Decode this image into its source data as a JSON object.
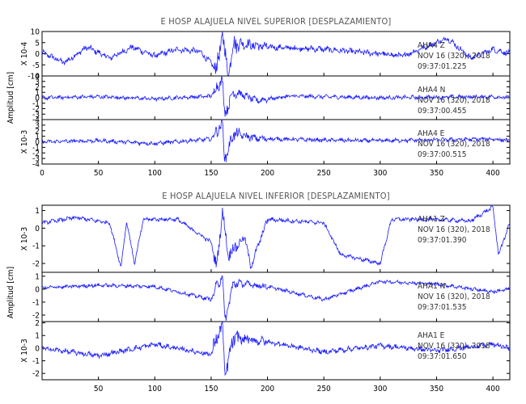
{
  "chart_data": [
    {
      "type": "line",
      "title": "E HOSP ALAJUELA NIVEL SUPERIOR [DESPLAZAMIENTO]",
      "ylabel": "Amplitud [cm]",
      "xlim": [
        0,
        415
      ],
      "x_ticks": [
        "0",
        "50",
        "100",
        "150",
        "200",
        "250",
        "300",
        "350",
        "400"
      ],
      "series": [
        {
          "name": "AHA4 Z",
          "scale_label": "X 10-4",
          "ylim": [
            -10,
            10
          ],
          "y_ticks": [
            -10,
            -5,
            0,
            5,
            10
          ],
          "y_tick_labels": [
            "-10",
            "-5",
            "0",
            "5",
            "10"
          ],
          "annotation": [
            "AHA4 Z",
            "NOV 16 (320), 2018",
            "09:37:01.225"
          ],
          "points": [
            [
              0,
              0.5
            ],
            [
              20,
              -4
            ],
            [
              40,
              3
            ],
            [
              60,
              -2
            ],
            [
              80,
              3
            ],
            [
              100,
              -1
            ],
            [
              120,
              2
            ],
            [
              140,
              1
            ],
            [
              155,
              -7
            ],
            [
              160,
              9
            ],
            [
              165,
              -10
            ],
            [
              170,
              5
            ],
            [
              200,
              3
            ],
            [
              250,
              2
            ],
            [
              300,
              0
            ],
            [
              320,
              -1
            ],
            [
              340,
              3
            ],
            [
              360,
              7
            ],
            [
              380,
              -2
            ],
            [
              400,
              2
            ],
            [
              415,
              0
            ]
          ],
          "burst": 0.9
        },
        {
          "name": "AHA4 N",
          "scale_label": "",
          "ylim": [
            -4,
            4
          ],
          "y_ticks": [
            -4,
            -3,
            -2,
            -1,
            0,
            1,
            2,
            3,
            4
          ],
          "y_tick_labels": [
            "-4",
            "-3",
            "-2",
            "-1",
            "0",
            "1",
            "2",
            "3",
            "4"
          ],
          "annotation": [
            "AHA4 N",
            "NOV 16 (320), 2018",
            "09:37:00.455"
          ],
          "points": [
            [
              0,
              0
            ],
            [
              50,
              0.2
            ],
            [
              100,
              -0.2
            ],
            [
              150,
              0.3
            ],
            [
              160,
              3.5
            ],
            [
              162,
              -3
            ],
            [
              170,
              1.2
            ],
            [
              190,
              -0.5
            ],
            [
              220,
              0.3
            ],
            [
              300,
              0
            ],
            [
              400,
              0.2
            ],
            [
              415,
              0
            ]
          ],
          "burst": 0.6
        },
        {
          "name": "AHA4 E",
          "scale_label": "X 10-3",
          "ylim": [
            -4,
            4
          ],
          "y_ticks": [
            -4,
            -3,
            -2,
            -1,
            0,
            1,
            2,
            3,
            4
          ],
          "y_tick_labels": [
            "-4",
            "-3",
            "-2",
            "-1",
            "0",
            "1",
            "2",
            "3",
            "4"
          ],
          "annotation": [
            "AHA4 E",
            "NOV 16 (320), 2018",
            "09:37:00.515"
          ],
          "points": [
            [
              0,
              0
            ],
            [
              50,
              0.2
            ],
            [
              100,
              -0.3
            ],
            [
              150,
              0.5
            ],
            [
              160,
              3.4
            ],
            [
              162,
              -3.2
            ],
            [
              170,
              1.5
            ],
            [
              190,
              0.6
            ],
            [
              250,
              0.3
            ],
            [
              300,
              0.2
            ],
            [
              400,
              0.5
            ],
            [
              415,
              0.2
            ]
          ],
          "burst": 0.6
        }
      ]
    },
    {
      "type": "line",
      "title": "E HOSP ALAJUELA NIVEL INFERIOR [DESPLAZAMIENTO]",
      "ylabel": "Amplitud [cm]",
      "xlim": [
        0,
        415
      ],
      "x_ticks": [
        "50",
        "100",
        "150",
        "200",
        "250",
        "300",
        "350",
        "400"
      ],
      "series": [
        {
          "name": "AHA1 Z",
          "scale_label": "X 10-3",
          "ylim": [
            -2.5,
            1.3
          ],
          "y_ticks": [
            -2,
            -1,
            0,
            1
          ],
          "y_tick_labels": [
            "-2",
            "-1",
            "0",
            "1"
          ],
          "annotation": [
            "AHA1 Z",
            "NOV 16 (320), 2018",
            "09:37:01.390"
          ],
          "points": [
            [
              0,
              0.3
            ],
            [
              30,
              0.6
            ],
            [
              60,
              0.3
            ],
            [
              70,
              -2.2
            ],
            [
              75,
              0.4
            ],
            [
              82,
              -2.0
            ],
            [
              90,
              0.5
            ],
            [
              120,
              0.5
            ],
            [
              150,
              -0.8
            ],
            [
              155,
              -2.2
            ],
            [
              160,
              1.0
            ],
            [
              165,
              -1.5
            ],
            [
              180,
              -0.5
            ],
            [
              185,
              -2.2
            ],
            [
              200,
              0.5
            ],
            [
              250,
              0.3
            ],
            [
              265,
              -1.5
            ],
            [
              300,
              -2.0
            ],
            [
              310,
              0.5
            ],
            [
              350,
              0.5
            ],
            [
              380,
              0.4
            ],
            [
              400,
              1.2
            ],
            [
              405,
              -1.5
            ],
            [
              415,
              0.3
            ]
          ],
          "burst": 0.4
        },
        {
          "name": "AHA1 N",
          "scale_label": "",
          "ylim": [
            -2.5,
            1.3
          ],
          "y_ticks": [
            -2,
            -1,
            0,
            1
          ],
          "y_tick_labels": [
            "-2",
            "-1",
            "0",
            "1"
          ],
          "annotation": [
            "AHA1 N",
            "NOV 16 (320), 2018",
            "09:37:01.535"
          ],
          "points": [
            [
              0,
              0.1
            ],
            [
              50,
              0.3
            ],
            [
              100,
              0.2
            ],
            [
              150,
              -0.8
            ],
            [
              160,
              1.2
            ],
            [
              162,
              -2.5
            ],
            [
              170,
              0.5
            ],
            [
              200,
              0.2
            ],
            [
              250,
              -0.8
            ],
            [
              300,
              0.6
            ],
            [
              350,
              0.4
            ],
            [
              400,
              -0.2
            ],
            [
              415,
              0
            ]
          ],
          "burst": 0.5
        },
        {
          "name": "AHA1 E",
          "scale_label": "X 10-3",
          "ylim": [
            -2.5,
            2.1
          ],
          "y_ticks": [
            -2,
            -1,
            0,
            1,
            2
          ],
          "y_tick_labels": [
            "-2",
            "-1",
            "0",
            "1",
            "2"
          ],
          "annotation": [
            "AHA1 E",
            "NOV 16 (320), 2018",
            "09:37:01.650"
          ],
          "points": [
            [
              0,
              0
            ],
            [
              50,
              -0.6
            ],
            [
              100,
              0.3
            ],
            [
              150,
              -0.5
            ],
            [
              160,
              2.0
            ],
            [
              162,
              -2.2
            ],
            [
              170,
              0.8
            ],
            [
              200,
              0.5
            ],
            [
              250,
              -0.3
            ],
            [
              300,
              0.2
            ],
            [
              350,
              -0.2
            ],
            [
              400,
              0.3
            ],
            [
              415,
              0
            ]
          ],
          "burst": 0.6
        }
      ]
    }
  ]
}
